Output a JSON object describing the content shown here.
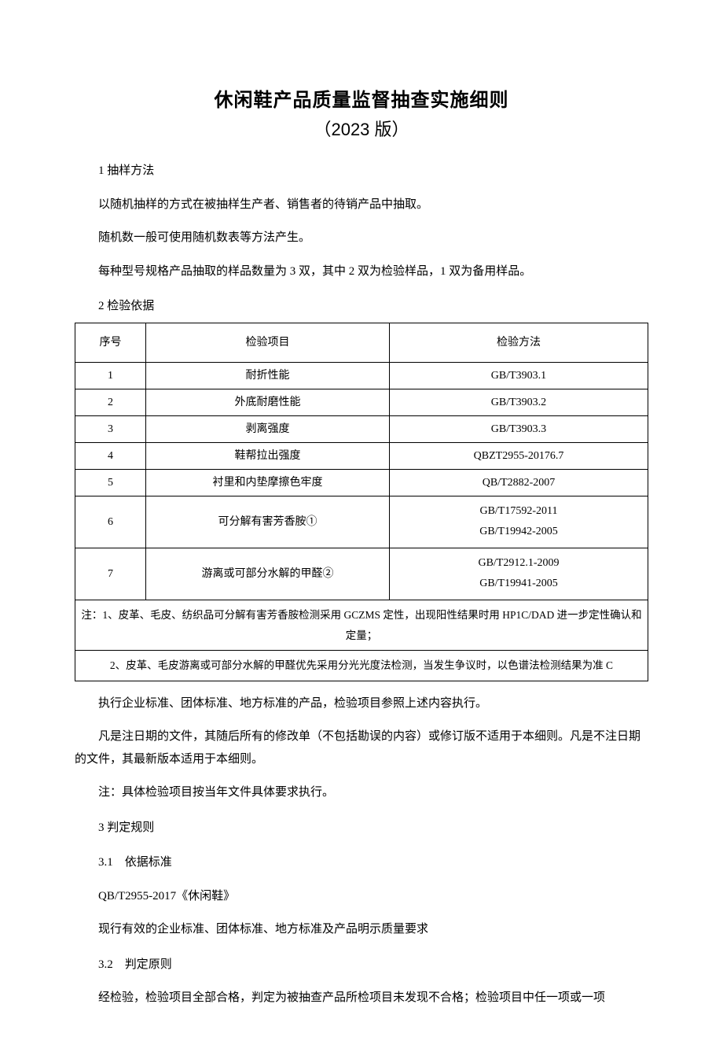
{
  "title": {
    "main": "休闲鞋产品质量监督抽查实施细则",
    "sub": "（2023 版）"
  },
  "s1_head": "1 抽样方法",
  "s1_p1": "以随机抽样的方式在被抽样生产者、销售者的待销产品中抽取。",
  "s1_p2": "随机数一般可使用随机数表等方法产生。",
  "s1_p3": "每种型号规格产品抽取的样品数量为 3 双，其中 2 双为检验样品，1 双为备用样品。",
  "s2_head": "2 检验依据",
  "table": {
    "headers": {
      "seq": "序号",
      "item": "检验项目",
      "method": "检验方法"
    },
    "rows": [
      {
        "seq": "1",
        "item": "耐折性能",
        "method": "GB/T3903.1"
      },
      {
        "seq": "2",
        "item": "外底耐磨性能",
        "method": "GB/T3903.2"
      },
      {
        "seq": "3",
        "item": "剥离强度",
        "method": "GB/T3903.3"
      },
      {
        "seq": "4",
        "item": "鞋帮拉出强度",
        "method": "QBZT2955-20176.7"
      },
      {
        "seq": "5",
        "item": "衬里和内垫摩擦色牢度",
        "method": "QB/T2882-2007"
      },
      {
        "seq": "6",
        "item": "可分解有害芳香胺①",
        "method1": "GB/T17592-2011",
        "method2": "GB/T19942-2005"
      },
      {
        "seq": "7",
        "item": "游离或可部分水解的甲醛②",
        "method1": "GB/T2912.1-2009",
        "method2": "GB/T19941-2005"
      }
    ],
    "note1": "注：1、皮革、毛皮、纺织品可分解有害芳香胺检测采用 GCZMS 定性，出现阳性结果时用 HP1C/DAD 进一步定性确认和定量；",
    "note2": "2、皮革、毛皮游离或可部分水解的甲醛优先采用分光光度法检测，当发生争议时，以色谱法检测结果为准 C"
  },
  "s2_p1": "执行企业标准、团体标准、地方标准的产品，检验项目参照上述内容执行。",
  "s2_p2": "凡是注日期的文件，其随后所有的修改单（不包括勘误的内容）或修订版不适用于本细则。凡是不注日期的文件，其最新版本适用于本细则。",
  "s2_p3": "注：具体检验项目按当年文件具体要求执行。",
  "s3_head": "3 判定规则",
  "s3_1_head": "3.1　依据标准",
  "s3_1_p1": "QB/T2955-2017《休闲鞋》",
  "s3_1_p2": "现行有效的企业标准、团体标准、地方标准及产品明示质量要求",
  "s3_2_head": "3.2　判定原则",
  "s3_2_p1": "经检验，检验项目全部合格，判定为被抽查产品所检项目未发现不合格；检验项目中任一项或一项"
}
